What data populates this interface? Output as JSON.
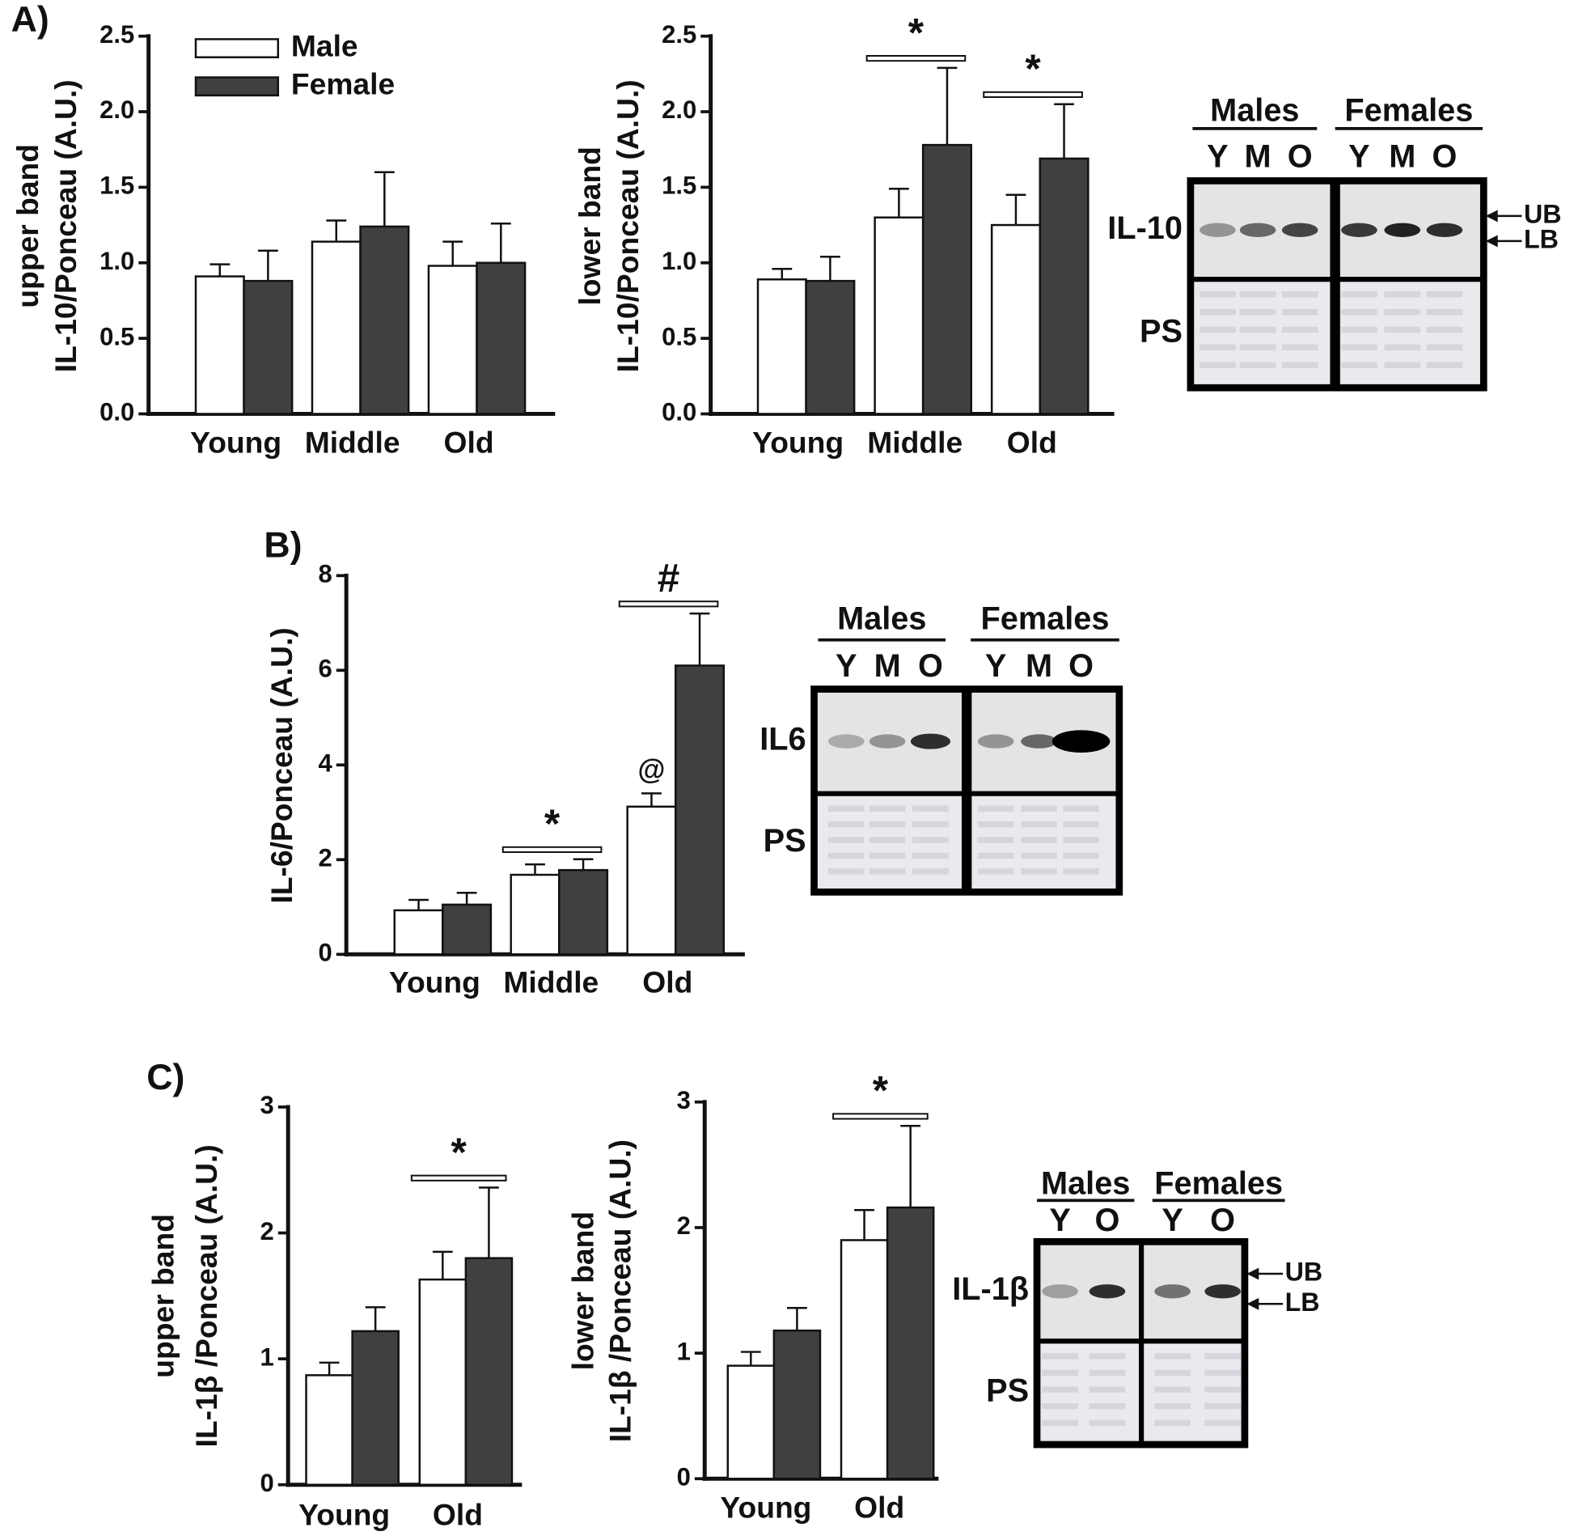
{
  "panel_labels": [
    "A)",
    "B)",
    "C)"
  ],
  "chart_data": [
    {
      "type": "bar",
      "ylabel": [
        "upper band",
        "IL-10/Ponceau (A.U.)"
      ],
      "categories": [
        "Young",
        "Middle",
        "Old"
      ],
      "series": [
        {
          "name": "Male",
          "color": "#ffffff",
          "values": [
            0.91,
            1.14,
            0.98
          ],
          "errors": [
            0.08,
            0.14,
            0.16
          ]
        },
        {
          "name": "Female",
          "color": "#404040",
          "values": [
            0.88,
            1.24,
            1.0
          ],
          "errors": [
            0.2,
            0.36,
            0.26
          ]
        }
      ],
      "ylim": [
        0,
        2.5
      ],
      "yticks": [
        {
          "value": 0,
          "label": "0.0"
        },
        0.5,
        {
          "value": 1,
          "label": "1.0"
        },
        1.5,
        {
          "value": 2,
          "label": "2.0"
        },
        2.5
      ],
      "legend": "upper-left",
      "annotations": []
    },
    {
      "type": "bar",
      "ylabel": [
        "lower band",
        "IL-10/Ponceau (A.U.)"
      ],
      "categories": [
        "Young",
        "Middle",
        "Old"
      ],
      "series": [
        {
          "color": "#ffffff",
          "values": [
            0.89,
            1.3,
            1.25
          ],
          "errors": [
            0.07,
            0.19,
            0.2
          ]
        },
        {
          "color": "#404040",
          "values": [
            0.88,
            1.78,
            1.69
          ],
          "errors": [
            0.16,
            0.51,
            0.36
          ]
        }
      ],
      "ylim": [
        0,
        2.5
      ],
      "yticks": [
        {
          "value": 0,
          "label": "0.0"
        },
        0.5,
        {
          "value": 1,
          "label": "1.0"
        },
        1.5,
        {
          "value": 2,
          "label": "2.0"
        },
        2.5
      ],
      "annotations": [
        {
          "text": "*",
          "category": 1
        },
        {
          "text": "*",
          "category": 2
        }
      ]
    },
    {
      "type": "bar",
      "ylabel": [
        "IL-6/Ponceau (A.U.)"
      ],
      "categories": [
        "Young",
        "Middle",
        "Old"
      ],
      "series": [
        {
          "color": "#ffffff",
          "values": [
            0.93,
            1.68,
            3.12
          ],
          "errors": [
            0.22,
            0.22,
            0.28
          ]
        },
        {
          "color": "#404040",
          "values": [
            1.05,
            1.78,
            6.1
          ],
          "errors": [
            0.25,
            0.23,
            1.1
          ]
        }
      ],
      "ylim": [
        0,
        8
      ],
      "yticks": [
        0,
        2,
        4,
        6,
        8
      ],
      "annotations": [
        {
          "text": "*",
          "category": 1
        },
        {
          "text": "#",
          "category": 2
        },
        {
          "text": "@",
          "category": 2,
          "series": 0
        }
      ]
    },
    {
      "type": "bar",
      "ylabel": [
        "upper band",
        "IL-1β /Ponceau (A.U.)"
      ],
      "categories": [
        "Young",
        "Old"
      ],
      "series": [
        {
          "color": "#ffffff",
          "values": [
            0.87,
            1.63
          ],
          "errors": [
            0.1,
            0.22
          ]
        },
        {
          "color": "#404040",
          "values": [
            1.22,
            1.8
          ],
          "errors": [
            0.19,
            0.56
          ]
        }
      ],
      "ylim": [
        0,
        3
      ],
      "yticks": [
        0,
        1,
        2,
        3
      ],
      "annotations": [
        {
          "text": "*",
          "category": 1
        }
      ]
    },
    {
      "type": "bar",
      "ylabel": [
        "lower band",
        "IL-1β /Ponceau (A.U.)"
      ],
      "categories": [
        "Young",
        "Old"
      ],
      "series": [
        {
          "color": "#ffffff",
          "values": [
            0.9,
            1.9
          ],
          "errors": [
            0.11,
            0.24
          ]
        },
        {
          "color": "#404040",
          "values": [
            1.18,
            2.16
          ],
          "errors": [
            0.18,
            0.65
          ]
        }
      ],
      "ylim": [
        0,
        3
      ],
      "yticks": [
        0,
        1,
        2,
        3
      ],
      "annotations": [
        {
          "text": "*",
          "category": 1
        }
      ]
    }
  ],
  "blots": [
    {
      "groups": [
        "Males",
        "Females"
      ],
      "lanes": [
        "Y",
        "M",
        "O",
        "Y",
        "M",
        "O"
      ],
      "rows": [
        "IL-10",
        "PS"
      ],
      "bands": [
        "UB",
        "LB"
      ]
    },
    {
      "groups": [
        "Males",
        "Females"
      ],
      "lanes": [
        "Y",
        "M",
        "O",
        "Y",
        "M",
        "O"
      ],
      "rows": [
        "IL6",
        "PS"
      ],
      "bands": []
    },
    {
      "groups": [
        "Males",
        "Females"
      ],
      "lanes": [
        "Y",
        "O",
        "Y",
        "O"
      ],
      "rows": [
        "IL-1β",
        "PS"
      ],
      "bands": [
        "UB",
        "LB"
      ]
    }
  ]
}
